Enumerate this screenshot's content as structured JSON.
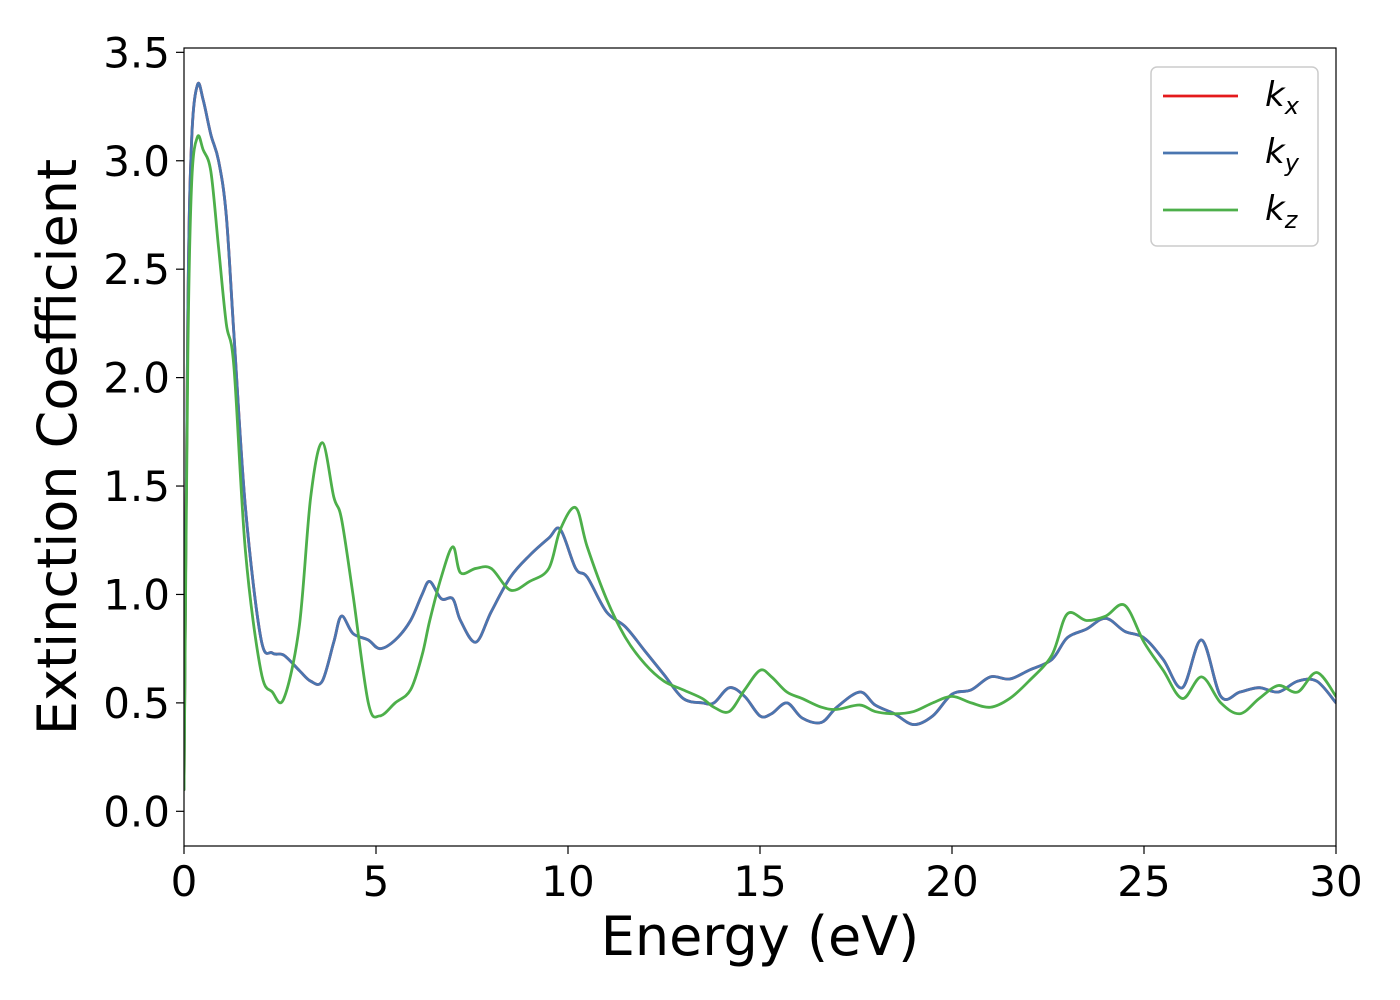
{
  "chart_data": {
    "type": "line",
    "title": "",
    "xlabel": "Energy (eV)",
    "ylabel": "Extinction Coefficient",
    "xlim": [
      0,
      30
    ],
    "ylim": [
      -0.16,
      3.52
    ],
    "xticks": [
      0,
      5,
      10,
      15,
      20,
      25,
      30
    ],
    "yticks": [
      0.0,
      0.5,
      1.0,
      1.5,
      2.0,
      2.5,
      3.0,
      3.5
    ],
    "xtick_labels": [
      "0",
      "5",
      "10",
      "15",
      "20",
      "25",
      "30"
    ],
    "ytick_labels": [
      "0.0",
      "0.5",
      "1.0",
      "1.5",
      "2.0",
      "2.5",
      "3.0",
      "3.5"
    ],
    "grid": false,
    "legend_position": "top-right",
    "series": [
      {
        "name": "k_x",
        "label_base": "k",
        "label_sub": "x",
        "color": "#e41a1c",
        "x": [
          0,
          0.1,
          0.2,
          0.35,
          0.5,
          0.7,
          0.9,
          1.1,
          1.3,
          1.6,
          2.0,
          2.3,
          2.6,
          3.0,
          3.3,
          3.6,
          3.9,
          4.1,
          4.4,
          4.8,
          5.1,
          5.5,
          5.9,
          6.2,
          6.4,
          6.7,
          7.0,
          7.2,
          7.6,
          8.0,
          8.5,
          9.0,
          9.5,
          9.8,
          10.2,
          10.5,
          11.0,
          11.5,
          12.0,
          12.5,
          13.0,
          13.5,
          13.8,
          14.2,
          14.6,
          15.0,
          15.3,
          15.7,
          16.1,
          16.6,
          17.0,
          17.6,
          18.0,
          18.5,
          19.0,
          19.5,
          20.0,
          20.5,
          21.0,
          21.5,
          22.0,
          22.6,
          23.0,
          23.5,
          24.0,
          24.5,
          25.0,
          25.5,
          26.0,
          26.5,
          27.0,
          27.5,
          28.0,
          28.5,
          29.0,
          29.5,
          30.0
        ],
        "y": [
          0.1,
          2.3,
          3.1,
          3.35,
          3.28,
          3.12,
          3.0,
          2.75,
          2.2,
          1.4,
          0.8,
          0.73,
          0.72,
          0.65,
          0.6,
          0.6,
          0.78,
          0.9,
          0.82,
          0.79,
          0.75,
          0.79,
          0.88,
          1.0,
          1.06,
          0.98,
          0.98,
          0.88,
          0.78,
          0.92,
          1.08,
          1.18,
          1.26,
          1.3,
          1.12,
          1.08,
          0.92,
          0.85,
          0.74,
          0.63,
          0.52,
          0.5,
          0.5,
          0.57,
          0.53,
          0.44,
          0.45,
          0.5,
          0.43,
          0.41,
          0.48,
          0.55,
          0.49,
          0.45,
          0.4,
          0.44,
          0.54,
          0.56,
          0.62,
          0.61,
          0.65,
          0.7,
          0.8,
          0.84,
          0.89,
          0.83,
          0.8,
          0.7,
          0.57,
          0.79,
          0.53,
          0.55,
          0.57,
          0.55,
          0.6,
          0.6,
          0.5
        ]
      },
      {
        "name": "k_y",
        "label_base": "k",
        "label_sub": "y",
        "color": "#4a76b0",
        "x": [
          0,
          0.1,
          0.2,
          0.35,
          0.5,
          0.7,
          0.9,
          1.1,
          1.3,
          1.6,
          2.0,
          2.3,
          2.6,
          3.0,
          3.3,
          3.6,
          3.9,
          4.1,
          4.4,
          4.8,
          5.1,
          5.5,
          5.9,
          6.2,
          6.4,
          6.7,
          7.0,
          7.2,
          7.6,
          8.0,
          8.5,
          9.0,
          9.5,
          9.8,
          10.2,
          10.5,
          11.0,
          11.5,
          12.0,
          12.5,
          13.0,
          13.5,
          13.8,
          14.2,
          14.6,
          15.0,
          15.3,
          15.7,
          16.1,
          16.6,
          17.0,
          17.6,
          18.0,
          18.5,
          19.0,
          19.5,
          20.0,
          20.5,
          21.0,
          21.5,
          22.0,
          22.6,
          23.0,
          23.5,
          24.0,
          24.5,
          25.0,
          25.5,
          26.0,
          26.5,
          27.0,
          27.5,
          28.0,
          28.5,
          29.0,
          29.5,
          30.0
        ],
        "y": [
          0.1,
          2.3,
          3.1,
          3.35,
          3.28,
          3.12,
          3.0,
          2.75,
          2.2,
          1.4,
          0.8,
          0.73,
          0.72,
          0.65,
          0.6,
          0.6,
          0.78,
          0.9,
          0.82,
          0.79,
          0.75,
          0.79,
          0.88,
          1.0,
          1.06,
          0.98,
          0.98,
          0.88,
          0.78,
          0.92,
          1.08,
          1.18,
          1.26,
          1.3,
          1.12,
          1.08,
          0.92,
          0.85,
          0.74,
          0.63,
          0.52,
          0.5,
          0.5,
          0.57,
          0.53,
          0.44,
          0.45,
          0.5,
          0.43,
          0.41,
          0.48,
          0.55,
          0.49,
          0.45,
          0.4,
          0.44,
          0.54,
          0.56,
          0.62,
          0.61,
          0.65,
          0.7,
          0.8,
          0.84,
          0.89,
          0.83,
          0.8,
          0.7,
          0.57,
          0.79,
          0.53,
          0.55,
          0.57,
          0.55,
          0.6,
          0.6,
          0.5
        ]
      },
      {
        "name": "k_z",
        "label_base": "k",
        "label_sub": "z",
        "color": "#4daf4a",
        "x": [
          0,
          0.1,
          0.2,
          0.35,
          0.5,
          0.7,
          0.9,
          1.1,
          1.3,
          1.6,
          2.0,
          2.3,
          2.6,
          3.0,
          3.3,
          3.6,
          3.9,
          4.1,
          4.4,
          4.8,
          5.1,
          5.5,
          5.9,
          6.2,
          6.4,
          6.7,
          7.0,
          7.2,
          7.6,
          8.0,
          8.5,
          9.0,
          9.5,
          9.8,
          10.2,
          10.5,
          11.0,
          11.5,
          12.0,
          12.5,
          13.0,
          13.5,
          13.8,
          14.2,
          14.6,
          15.0,
          15.3,
          15.7,
          16.1,
          16.6,
          17.0,
          17.6,
          18.0,
          18.5,
          19.0,
          19.5,
          20.0,
          20.5,
          21.0,
          21.5,
          22.0,
          22.6,
          23.0,
          23.5,
          24.0,
          24.5,
          25.0,
          25.5,
          26.0,
          26.5,
          27.0,
          27.5,
          28.0,
          28.5,
          29.0,
          29.5,
          30.0
        ],
        "y": [
          0.1,
          2.1,
          2.9,
          3.11,
          3.05,
          2.95,
          2.6,
          2.25,
          2.05,
          1.2,
          0.65,
          0.55,
          0.52,
          0.85,
          1.45,
          1.7,
          1.45,
          1.35,
          1.0,
          0.5,
          0.44,
          0.5,
          0.56,
          0.72,
          0.88,
          1.08,
          1.22,
          1.1,
          1.12,
          1.12,
          1.02,
          1.06,
          1.12,
          1.3,
          1.4,
          1.22,
          0.98,
          0.8,
          0.68,
          0.6,
          0.56,
          0.52,
          0.48,
          0.46,
          0.56,
          0.65,
          0.62,
          0.55,
          0.52,
          0.48,
          0.47,
          0.49,
          0.46,
          0.45,
          0.46,
          0.5,
          0.53,
          0.5,
          0.48,
          0.52,
          0.6,
          0.72,
          0.91,
          0.88,
          0.9,
          0.95,
          0.78,
          0.65,
          0.52,
          0.62,
          0.5,
          0.45,
          0.52,
          0.58,
          0.55,
          0.64,
          0.53
        ]
      }
    ]
  }
}
